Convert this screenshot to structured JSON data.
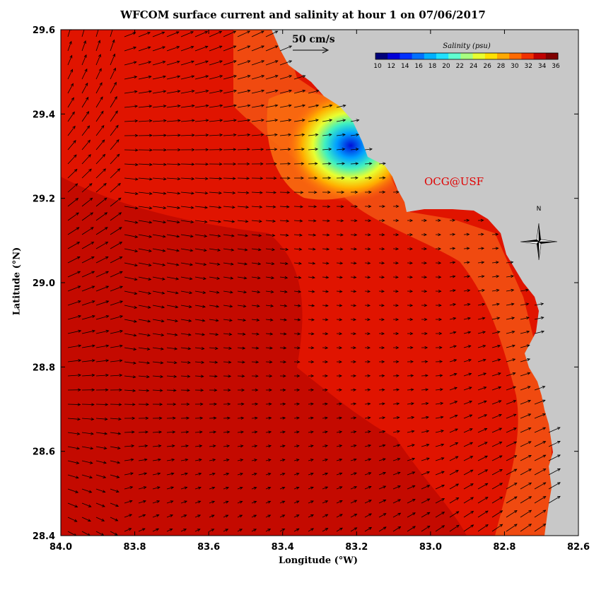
{
  "title": "WFCOM surface current and salinity at hour 1 on 07/06/2017",
  "xlabel": "Longitude (°W)",
  "ylabel": "Latitude (°N)",
  "scale_arrow_label": "50 cm/s",
  "colorbar": {
    "title": "Salinity (psu)",
    "ticks": [
      "10",
      "12",
      "14",
      "16",
      "18",
      "20",
      "22",
      "24",
      "26",
      "28",
      "30",
      "32",
      "34",
      "36"
    ],
    "colors": [
      "#00007a",
      "#0000d8",
      "#0030ff",
      "#0070ff",
      "#00b0ff",
      "#20e0ff",
      "#60ffd0",
      "#a8ff80",
      "#e8ff30",
      "#ffe000",
      "#ffa800",
      "#ff6a00",
      "#f03000",
      "#c00000",
      "#800000"
    ]
  },
  "credit": "OCG@USF",
  "compass_label": "N",
  "map": {
    "x_ticks": [
      "84.0",
      "83.8",
      "83.6",
      "83.4",
      "83.2",
      "83.0",
      "82.8",
      "82.6"
    ],
    "y_ticks": [
      "29.6",
      "29.4",
      "29.2",
      "29.0",
      "28.8",
      "28.6",
      "28.4"
    ],
    "x_range_deg_west": [
      84.0,
      82.6
    ],
    "y_range_deg_north": [
      28.4,
      29.6
    ],
    "colors": {
      "land": "#c8c8c8",
      "ocean_deep": "#c80800",
      "ocean_mid": "#e81800",
      "ocean_near": "#f84a10",
      "arrow": "#000000",
      "credit": "#e00000"
    }
  }
}
